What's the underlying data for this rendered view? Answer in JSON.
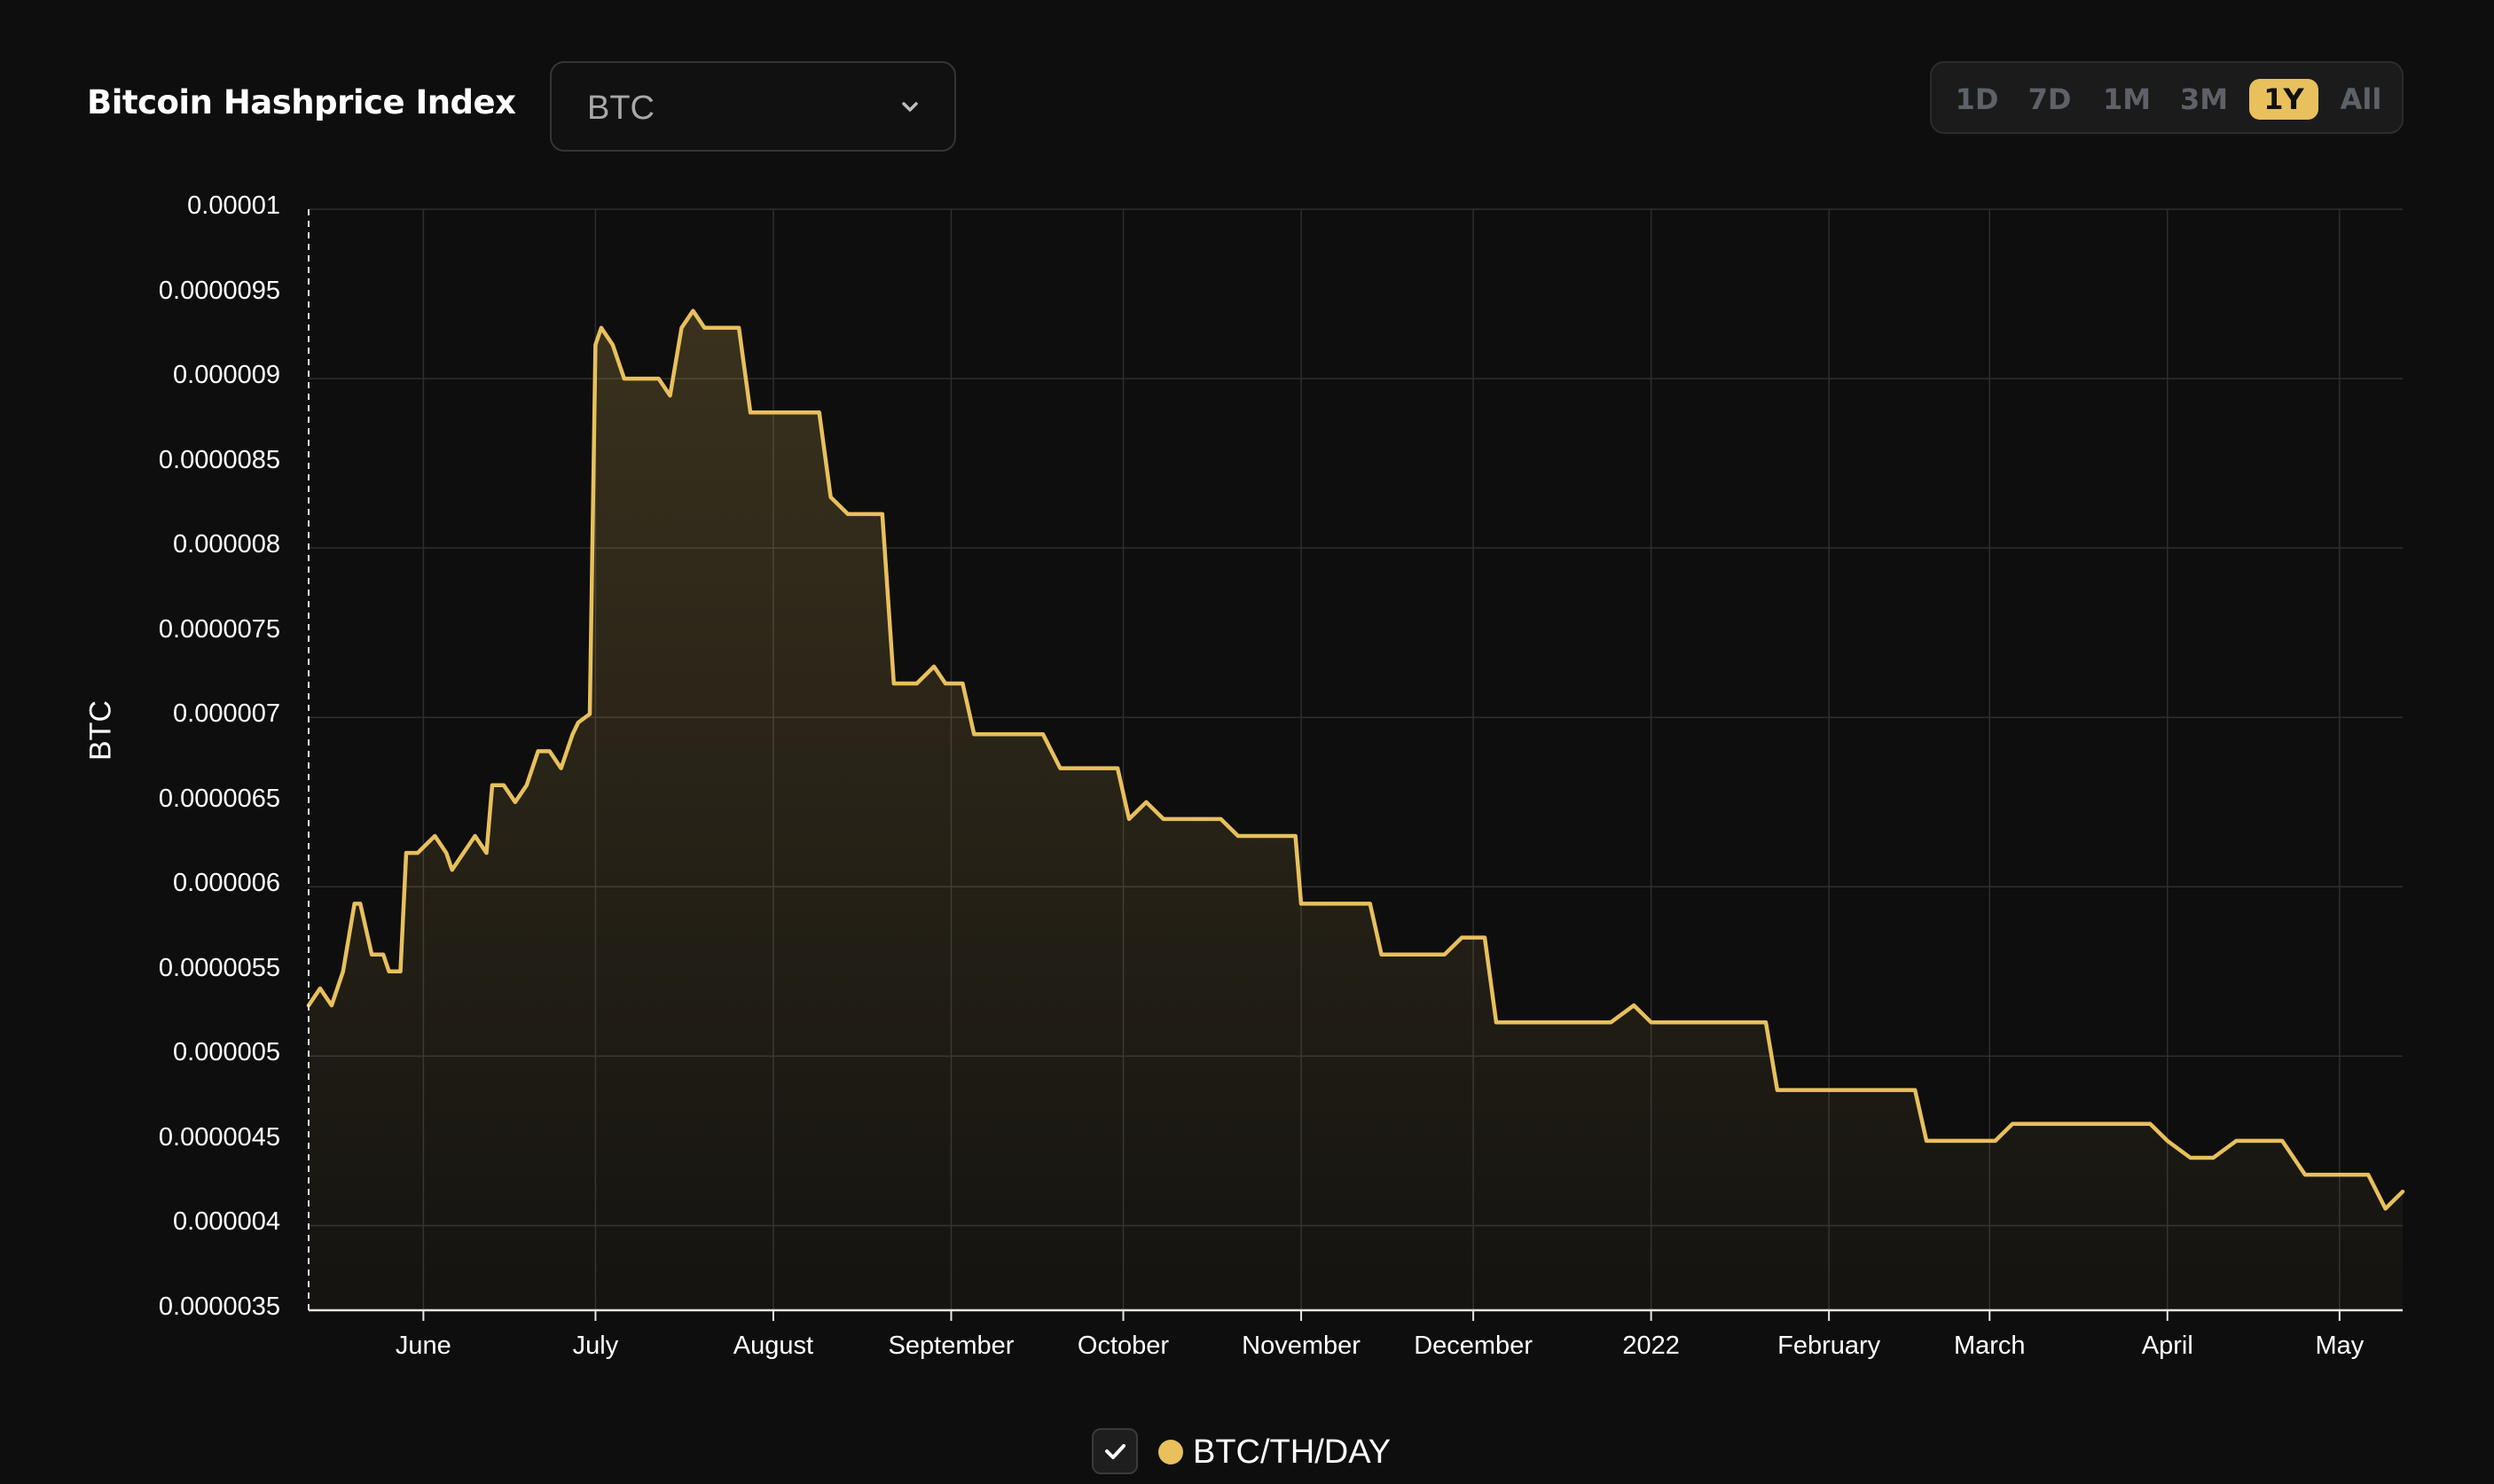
{
  "header": {
    "title": "Bitcoin Hashprice Index",
    "currency_select": {
      "value": "BTC",
      "icon": "chevron-down-icon"
    },
    "ranges": [
      {
        "label": "1D",
        "active": false
      },
      {
        "label": "7D",
        "active": false
      },
      {
        "label": "1M",
        "active": false
      },
      {
        "label": "3M",
        "active": false
      },
      {
        "label": "1Y",
        "active": true
      },
      {
        "label": "All",
        "active": false
      }
    ]
  },
  "colors": {
    "line": "#e8c05c",
    "background": "#0e0e0e",
    "grid": "#2e2e2e",
    "active_range": "#e8c05c"
  },
  "legend": {
    "label": "BTC/TH/DAY",
    "checked": true,
    "check_icon": "checkmark-icon"
  },
  "chart_data": {
    "type": "area",
    "title": "",
    "xlabel": "",
    "ylabel": "BTC",
    "ylim": [
      3.5e-06,
      1e-05
    ],
    "y_ticks": [
      "0.00001",
      "0.0000095",
      "0.000009",
      "0.0000085",
      "0.000008",
      "0.0000075",
      "0.000007",
      "0.0000065",
      "0.000006",
      "0.0000055",
      "0.000005",
      "0.0000045",
      "0.000004",
      "0.0000035"
    ],
    "x_range": [
      "2021-05-12",
      "2022-05-12"
    ],
    "x_ticks": [
      {
        "label": "June",
        "date": "2021-06-01"
      },
      {
        "label": "July",
        "date": "2021-07-01"
      },
      {
        "label": "August",
        "date": "2021-08-01"
      },
      {
        "label": "September",
        "date": "2021-09-01"
      },
      {
        "label": "October",
        "date": "2021-10-01"
      },
      {
        "label": "November",
        "date": "2021-11-01"
      },
      {
        "label": "December",
        "date": "2021-12-01"
      },
      {
        "label": "2022",
        "date": "2022-01-01"
      },
      {
        "label": "February",
        "date": "2022-02-01"
      },
      {
        "label": "March",
        "date": "2022-03-01"
      },
      {
        "label": "April",
        "date": "2022-04-01"
      },
      {
        "label": "May",
        "date": "2022-05-01"
      }
    ],
    "grid": true,
    "legend_position": "bottom-center",
    "series": [
      {
        "name": "BTC/TH/DAY",
        "points": [
          [
            "2021-05-12",
            5.3e-06
          ],
          [
            "2021-05-14",
            5.4e-06
          ],
          [
            "2021-05-16",
            5.3e-06
          ],
          [
            "2021-05-18",
            5.5e-06
          ],
          [
            "2021-05-20",
            5.9e-06
          ],
          [
            "2021-05-21",
            5.9e-06
          ],
          [
            "2021-05-23",
            5.6e-06
          ],
          [
            "2021-05-25",
            5.6e-06
          ],
          [
            "2021-05-26",
            5.5e-06
          ],
          [
            "2021-05-28",
            5.5e-06
          ],
          [
            "2021-05-29",
            6.2e-06
          ],
          [
            "2021-05-31",
            6.2e-06
          ],
          [
            "2021-06-03",
            6.3e-06
          ],
          [
            "2021-06-05",
            6.2e-06
          ],
          [
            "2021-06-06",
            6.1e-06
          ],
          [
            "2021-06-08",
            6.2e-06
          ],
          [
            "2021-06-10",
            6.3e-06
          ],
          [
            "2021-06-12",
            6.2e-06
          ],
          [
            "2021-06-13",
            6.6e-06
          ],
          [
            "2021-06-15",
            6.6e-06
          ],
          [
            "2021-06-17",
            6.5e-06
          ],
          [
            "2021-06-19",
            6.6e-06
          ],
          [
            "2021-06-21",
            6.8e-06
          ],
          [
            "2021-06-23",
            6.8e-06
          ],
          [
            "2021-06-25",
            6.7e-06
          ],
          [
            "2021-06-27",
            6.9e-06
          ],
          [
            "2021-06-28",
            6.97e-06
          ],
          [
            "2021-06-30",
            7.02e-06
          ],
          [
            "2021-07-01",
            9.2e-06
          ],
          [
            "2021-07-02",
            9.3e-06
          ],
          [
            "2021-07-04",
            9.2e-06
          ],
          [
            "2021-07-06",
            9e-06
          ],
          [
            "2021-07-08",
            9e-06
          ],
          [
            "2021-07-10",
            9e-06
          ],
          [
            "2021-07-12",
            9e-06
          ],
          [
            "2021-07-14",
            8.9e-06
          ],
          [
            "2021-07-16",
            9.3e-06
          ],
          [
            "2021-07-18",
            9.4e-06
          ],
          [
            "2021-07-20",
            9.3e-06
          ],
          [
            "2021-07-22",
            9.3e-06
          ],
          [
            "2021-07-24",
            9.3e-06
          ],
          [
            "2021-07-26",
            9.3e-06
          ],
          [
            "2021-07-28",
            8.8e-06
          ],
          [
            "2021-07-30",
            8.8e-06
          ],
          [
            "2021-08-01",
            8.8e-06
          ],
          [
            "2021-08-03",
            8.8e-06
          ],
          [
            "2021-08-05",
            8.8e-06
          ],
          [
            "2021-08-07",
            8.8e-06
          ],
          [
            "2021-08-09",
            8.8e-06
          ],
          [
            "2021-08-11",
            8.3e-06
          ],
          [
            "2021-08-14",
            8.2e-06
          ],
          [
            "2021-08-16",
            8.2e-06
          ],
          [
            "2021-08-18",
            8.2e-06
          ],
          [
            "2021-08-20",
            8.2e-06
          ],
          [
            "2021-08-22",
            7.2e-06
          ],
          [
            "2021-08-24",
            7.2e-06
          ],
          [
            "2021-08-26",
            7.2e-06
          ],
          [
            "2021-08-29",
            7.3e-06
          ],
          [
            "2021-08-31",
            7.2e-06
          ],
          [
            "2021-09-03",
            7.2e-06
          ],
          [
            "2021-09-05",
            6.9e-06
          ],
          [
            "2021-09-08",
            6.9e-06
          ],
          [
            "2021-09-11",
            6.9e-06
          ],
          [
            "2021-09-14",
            6.9e-06
          ],
          [
            "2021-09-17",
            6.9e-06
          ],
          [
            "2021-09-20",
            6.7e-06
          ],
          [
            "2021-09-24",
            6.7e-06
          ],
          [
            "2021-09-28",
            6.7e-06
          ],
          [
            "2021-09-30",
            6.7e-06
          ],
          [
            "2021-10-02",
            6.4e-06
          ],
          [
            "2021-10-05",
            6.5e-06
          ],
          [
            "2021-10-08",
            6.4e-06
          ],
          [
            "2021-10-11",
            6.4e-06
          ],
          [
            "2021-10-14",
            6.4e-06
          ],
          [
            "2021-10-18",
            6.4e-06
          ],
          [
            "2021-10-21",
            6.3e-06
          ],
          [
            "2021-10-25",
            6.3e-06
          ],
          [
            "2021-10-28",
            6.3e-06
          ],
          [
            "2021-10-31",
            6.3e-06
          ],
          [
            "2021-11-01",
            5.9e-06
          ],
          [
            "2021-11-04",
            5.9e-06
          ],
          [
            "2021-11-07",
            5.9e-06
          ],
          [
            "2021-11-10",
            5.9e-06
          ],
          [
            "2021-11-13",
            5.9e-06
          ],
          [
            "2021-11-15",
            5.6e-06
          ],
          [
            "2021-11-19",
            5.6e-06
          ],
          [
            "2021-11-23",
            5.6e-06
          ],
          [
            "2021-11-26",
            5.6e-06
          ],
          [
            "2021-11-29",
            5.7e-06
          ],
          [
            "2021-12-01",
            5.7e-06
          ],
          [
            "2021-12-03",
            5.7e-06
          ],
          [
            "2021-12-05",
            5.2e-06
          ],
          [
            "2021-12-09",
            5.2e-06
          ],
          [
            "2021-12-13",
            5.2e-06
          ],
          [
            "2021-12-17",
            5.2e-06
          ],
          [
            "2021-12-21",
            5.2e-06
          ],
          [
            "2021-12-25",
            5.2e-06
          ],
          [
            "2021-12-29",
            5.3e-06
          ],
          [
            "2022-01-01",
            5.2e-06
          ],
          [
            "2022-01-05",
            5.2e-06
          ],
          [
            "2022-01-09",
            5.2e-06
          ],
          [
            "2022-01-13",
            5.2e-06
          ],
          [
            "2022-01-17",
            5.2e-06
          ],
          [
            "2022-01-21",
            5.2e-06
          ],
          [
            "2022-01-23",
            4.8e-06
          ],
          [
            "2022-01-27",
            4.8e-06
          ],
          [
            "2022-01-31",
            4.8e-06
          ],
          [
            "2022-02-04",
            4.8e-06
          ],
          [
            "2022-02-08",
            4.8e-06
          ],
          [
            "2022-02-12",
            4.8e-06
          ],
          [
            "2022-02-16",
            4.8e-06
          ],
          [
            "2022-02-18",
            4.5e-06
          ],
          [
            "2022-02-22",
            4.5e-06
          ],
          [
            "2022-02-26",
            4.5e-06
          ],
          [
            "2022-03-02",
            4.5e-06
          ],
          [
            "2022-03-05",
            4.6e-06
          ],
          [
            "2022-03-09",
            4.6e-06
          ],
          [
            "2022-03-13",
            4.6e-06
          ],
          [
            "2022-03-17",
            4.6e-06
          ],
          [
            "2022-03-21",
            4.6e-06
          ],
          [
            "2022-03-25",
            4.6e-06
          ],
          [
            "2022-03-29",
            4.6e-06
          ],
          [
            "2022-04-01",
            4.5e-06
          ],
          [
            "2022-04-05",
            4.4e-06
          ],
          [
            "2022-04-09",
            4.4e-06
          ],
          [
            "2022-04-13",
            4.5e-06
          ],
          [
            "2022-04-17",
            4.5e-06
          ],
          [
            "2022-04-21",
            4.5e-06
          ],
          [
            "2022-04-25",
            4.3e-06
          ],
          [
            "2022-04-29",
            4.3e-06
          ],
          [
            "2022-05-03",
            4.3e-06
          ],
          [
            "2022-05-06",
            4.3e-06
          ],
          [
            "2022-05-09",
            4.1e-06
          ],
          [
            "2022-05-12",
            4.2e-06
          ]
        ]
      }
    ]
  }
}
